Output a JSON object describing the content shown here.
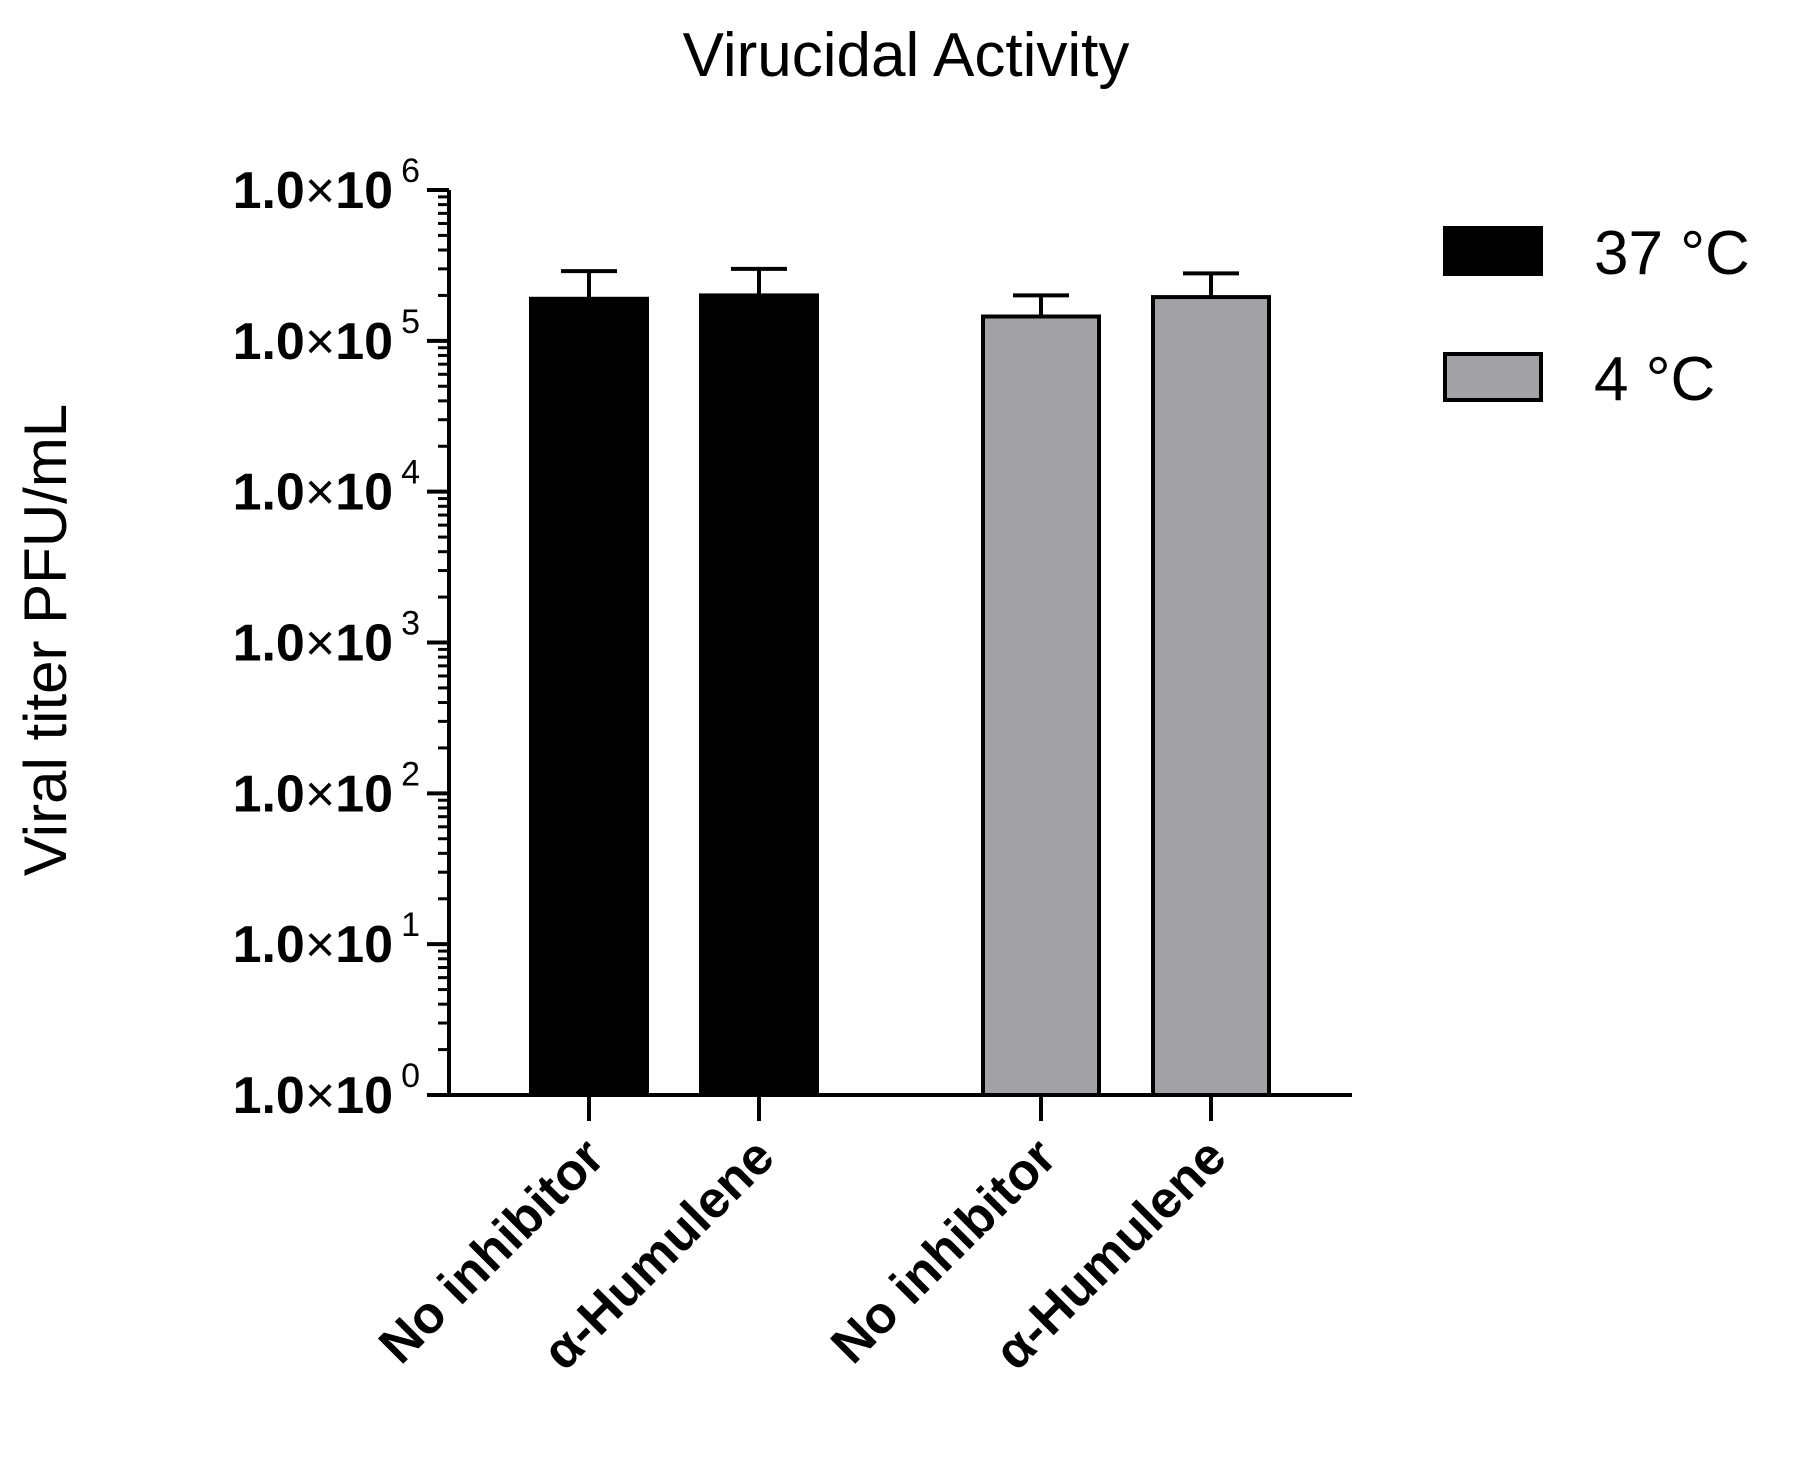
{
  "chart_data": {
    "type": "bar",
    "title": "Virucidal Activity",
    "ylabel": "Viral titer PFU/mL",
    "xlabel": "",
    "yscale": "log",
    "ylim": [
      1,
      1000000
    ],
    "yticks": [
      {
        "value": 1,
        "mantissa": "1.0",
        "times": "×",
        "base": "10",
        "exp": "0"
      },
      {
        "value": 10,
        "mantissa": "1.0",
        "times": "×",
        "base": "10",
        "exp": "1"
      },
      {
        "value": 100,
        "mantissa": "1.0",
        "times": "×",
        "base": "10",
        "exp": "2"
      },
      {
        "value": 1000,
        "mantissa": "1.0",
        "times": "×",
        "base": "10",
        "exp": "3"
      },
      {
        "value": 10000,
        "mantissa": "1.0",
        "times": "×",
        "base": "10",
        "exp": "4"
      },
      {
        "value": 100000,
        "mantissa": "1.0",
        "times": "×",
        "base": "10",
        "exp": "5"
      },
      {
        "value": 1000000,
        "mantissa": "1.0",
        "times": "×",
        "base": "10",
        "exp": "6"
      }
    ],
    "legend_position": "top-right",
    "series": [
      {
        "name": "37 °C",
        "color": "#000000",
        "bars": [
          {
            "category": "No inhibitor",
            "value": 190000,
            "error": 100000
          },
          {
            "category": "α-Humulene",
            "value": 200000,
            "error": 100000
          }
        ]
      },
      {
        "name": "4 °C",
        "color": "#a2a2a6",
        "bars": [
          {
            "category": "No inhibitor",
            "value": 145000,
            "error": 55000
          },
          {
            "category": "α-Humulene",
            "value": 195000,
            "error": 85000
          }
        ]
      }
    ]
  }
}
